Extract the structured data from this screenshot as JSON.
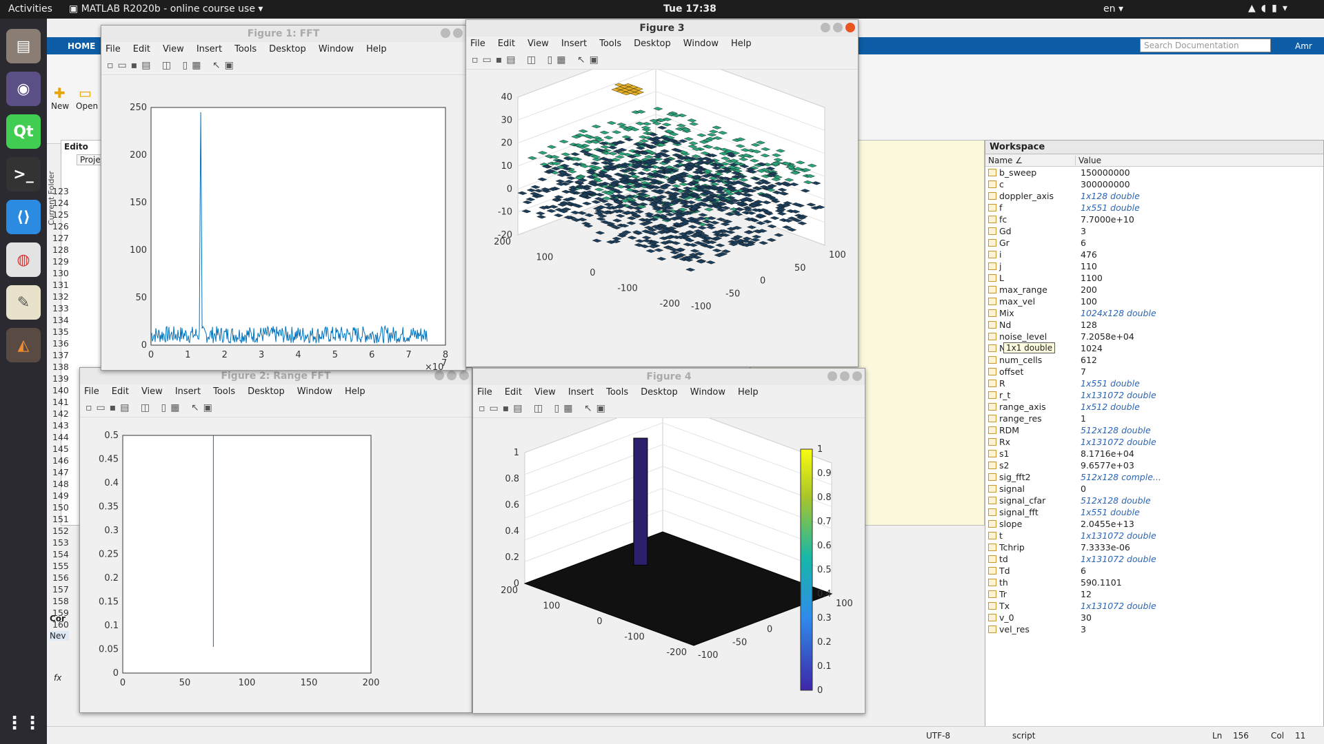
{
  "topbar": {
    "activities": "Activities",
    "app_title": "MATLAB R2020b - online course use",
    "clock": "Tue 17:38",
    "lang": "en"
  },
  "matlab": {
    "tab_home": "HOME",
    "search_placeholder": "Search Documentation",
    "user": "Amr",
    "new_label": "New",
    "open_label": "Open",
    "current_folder": "Current Folder",
    "editor_label": "Edito",
    "project_label": "Proje",
    "command_label": "Cor",
    "new_label2": "Nev",
    "fx": "fx"
  },
  "editor": {
    "line_numbers": [
      "123",
      "124",
      "125",
      "126",
      "127",
      "128",
      "129",
      "130",
      "131",
      "132",
      "133",
      "134",
      "135",
      "136",
      "137",
      "138",
      "139",
      "140",
      "141",
      "142",
      "143",
      "144",
      "145",
      "146",
      "147",
      "148",
      "149",
      "150",
      "151",
      "152",
      "153",
      "154",
      "155",
      "156",
      "157",
      "158",
      "159",
      "160"
    ]
  },
  "menus": [
    "File",
    "Edit",
    "View",
    "Insert",
    "Tools",
    "Desktop",
    "Window",
    "Help"
  ],
  "fig1": {
    "title": "Figure 1: FFT",
    "xexp": "×10",
    "xexp_power": "7"
  },
  "fig2": {
    "title": "Figure 2: Range FFT"
  },
  "fig3": {
    "title": "Figure 3"
  },
  "fig4": {
    "title": "Figure 4"
  },
  "workspace": {
    "title": "Workspace",
    "col_name": "Name ∠",
    "col_value": "Value",
    "tooltip": "1x1 double",
    "rows": [
      [
        "b_sweep",
        "150000000",
        false
      ],
      [
        "c",
        "300000000",
        false
      ],
      [
        "doppler_axis",
        "1x128 double",
        true
      ],
      [
        "f",
        "1x551 double",
        true
      ],
      [
        "fc",
        "7.7000e+10",
        false
      ],
      [
        "Gd",
        "3",
        false
      ],
      [
        "Gr",
        "6",
        false
      ],
      [
        "i",
        "476",
        false
      ],
      [
        "j",
        "110",
        false
      ],
      [
        "L",
        "1100",
        false
      ],
      [
        "max_range",
        "200",
        false
      ],
      [
        "max_vel",
        "100",
        false
      ],
      [
        "Mix",
        "1024x128 double",
        true
      ],
      [
        "Nd",
        "128",
        false
      ],
      [
        "noise_level",
        "7.2058e+04",
        false
      ],
      [
        "Nr",
        "1024",
        false
      ],
      [
        "num_cells",
        "612",
        false
      ],
      [
        "offset",
        "7",
        false
      ],
      [
        "R",
        "1x551 double",
        true
      ],
      [
        "r_t",
        "1x131072 double",
        true
      ],
      [
        "range_axis",
        "1x512 double",
        true
      ],
      [
        "range_res",
        "1",
        false
      ],
      [
        "RDM",
        "512x128 double",
        true
      ],
      [
        "Rx",
        "1x131072 double",
        true
      ],
      [
        "s1",
        "8.1716e+04",
        false
      ],
      [
        "s2",
        "9.6577e+03",
        false
      ],
      [
        "sig_fft2",
        "512x128 comple...",
        true
      ],
      [
        "signal",
        "0",
        false
      ],
      [
        "signal_cfar",
        "512x128 double",
        true
      ],
      [
        "signal_fft",
        "1x551 double",
        true
      ],
      [
        "slope",
        "2.0455e+13",
        false
      ],
      [
        "t",
        "1x131072 double",
        true
      ],
      [
        "Tchrip",
        "7.3333e-06",
        false
      ],
      [
        "td",
        "1x131072 double",
        true
      ],
      [
        "Td",
        "6",
        false
      ],
      [
        "th",
        "590.1101",
        false
      ],
      [
        "Tr",
        "12",
        false
      ],
      [
        "Tx",
        "1x131072 double",
        true
      ],
      [
        "v_0",
        "30",
        false
      ],
      [
        "vel_res",
        "3",
        false
      ]
    ]
  },
  "status": {
    "encoding": "UTF-8",
    "type": "script",
    "ln_label": "Ln",
    "ln": "156",
    "col_label": "Col",
    "col": "11"
  },
  "chart_data": [
    {
      "type": "line",
      "title": "",
      "xlim": [
        0,
        80000000
      ],
      "ylim": [
        0,
        250
      ],
      "xticks": [
        "0",
        "1",
        "2",
        "3",
        "4",
        "5",
        "6",
        "7",
        "8"
      ],
      "yticks": [
        "0",
        "50",
        "100",
        "150",
        "200",
        "250"
      ],
      "series": [
        {
          "values_description": "noise floor ~5-20 with peak",
          "peak_x": 13500000,
          "peak_y": 245,
          "noise_range": [
            2,
            20
          ]
        }
      ]
    },
    {
      "type": "line",
      "title": "",
      "xlim": [
        0,
        200
      ],
      "ylim": [
        0,
        0.5
      ],
      "xticks": [
        "0",
        "50",
        "100",
        "150",
        "200"
      ],
      "yticks": [
        "0",
        "0.05",
        "0.1",
        "0.15",
        "0.2",
        "0.25",
        "0.3",
        "0.35",
        "0.4",
        "0.45",
        "0.5"
      ],
      "series": [
        {
          "x": [
            73,
            73
          ],
          "y": [
            0.055,
            0.5
          ]
        }
      ]
    },
    {
      "type": "surface",
      "title": "",
      "zticks": [
        "-20",
        "-10",
        "0",
        "10",
        "20",
        "30",
        "40"
      ],
      "yticks": [
        "200",
        "100",
        "0",
        "-100",
        "-200"
      ],
      "xticks": [
        "-100",
        "-50",
        "0",
        "50",
        "100"
      ]
    },
    {
      "type": "surface",
      "title": "",
      "zticks": [
        "0",
        "0.2",
        "0.4",
        "0.6",
        "0.8",
        "1"
      ],
      "yticks": [
        "200",
        "100",
        "0",
        "-100",
        "-200"
      ],
      "xticks": [
        "-100",
        "-50",
        "0",
        "50",
        "100"
      ],
      "colorbar": [
        "0",
        "0.1",
        "0.2",
        "0.3",
        "0.4",
        "0.5",
        "0.6",
        "0.7",
        "0.8",
        "0.9",
        "1"
      ]
    }
  ]
}
